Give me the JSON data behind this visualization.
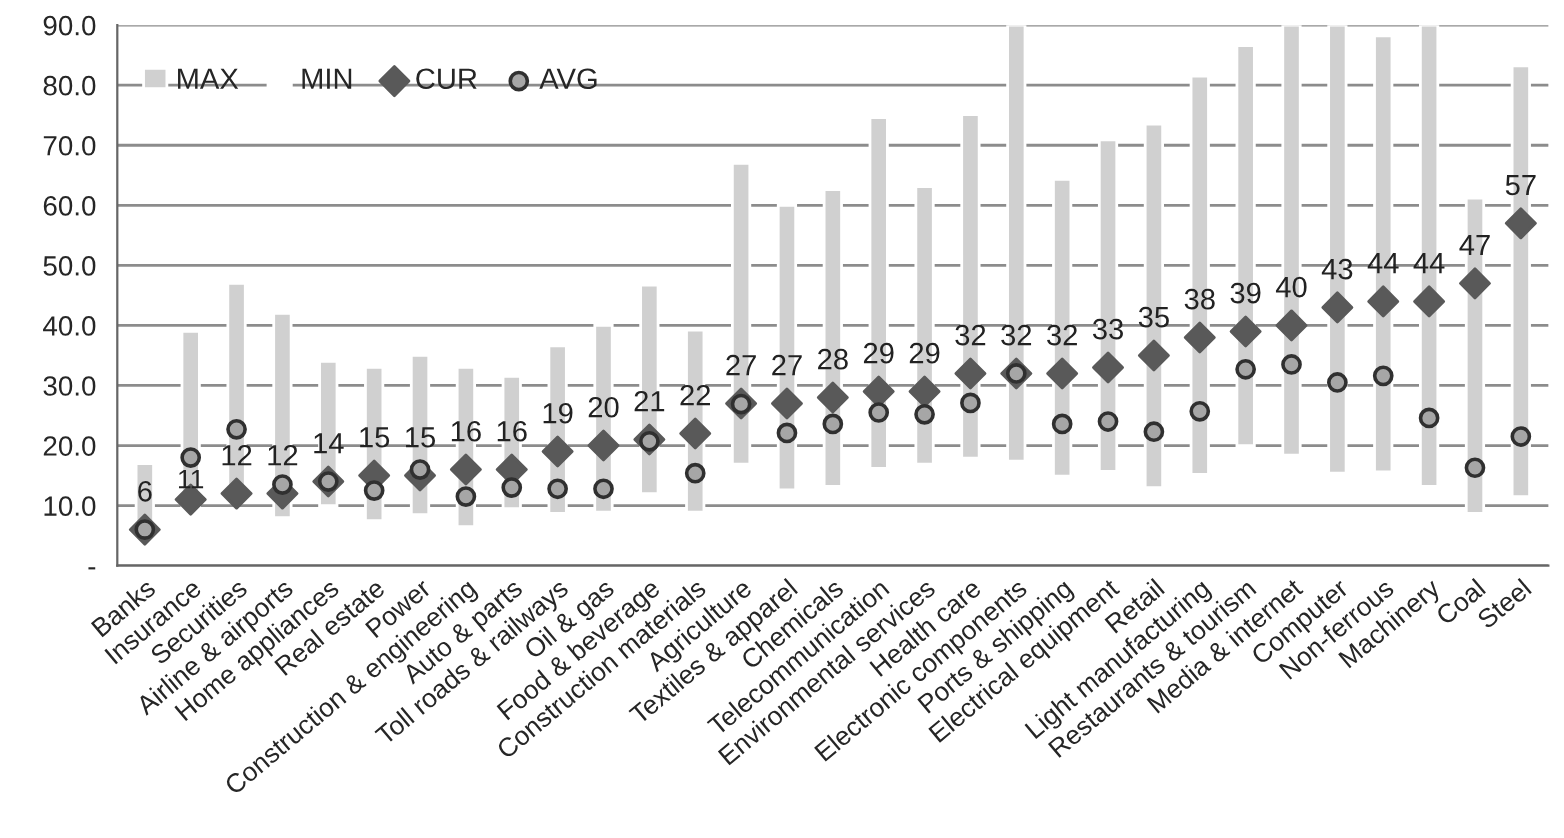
{
  "chart_data": {
    "type": "bar",
    "categories": [
      "Banks",
      "Insurance",
      "Securities",
      "Airline & airports",
      "Home appliances",
      "Real estate",
      "Power",
      "Construction & engineering",
      "Auto & parts",
      "Toll roads & railways",
      "Oil & gas",
      "Food & beverage",
      "Construction materials",
      "Agriculture",
      "Textiles & apparel",
      "Chemicals",
      "Telecommunication",
      "Environmental services",
      "Health care",
      "Electronic components",
      "Ports & shipping",
      "Electrical equipment",
      "Retail",
      "Light manufacturing",
      "Restaurants & tourism",
      "Media & internet",
      "Computer",
      "Non-ferrous",
      "Machinery",
      "Coal",
      "Steel"
    ],
    "series": [
      {
        "name": "MIN",
        "color": "#ffffff",
        "values": [
          null,
          null,
          null,
          null,
          null,
          null,
          null,
          null,
          null,
          null,
          null,
          null,
          null,
          null,
          null,
          null,
          null,
          null,
          null,
          null,
          null,
          null,
          null,
          null,
          null,
          null,
          null,
          null,
          null,
          null,
          null
        ]
      },
      {
        "name": "MAX",
        "color": "#d0d0d0",
        "base": [
          5,
          10,
          11,
          8,
          10,
          7.5,
          8.5,
          6.5,
          9.5,
          8.7,
          8.9,
          12,
          8.9,
          16.9,
          12.6,
          13.2,
          16.2,
          16.9,
          17.9,
          17.4,
          14.9,
          15.7,
          13,
          15.2,
          20,
          18.4,
          15.4,
          15.6,
          13.2,
          8.7,
          11.5
        ],
        "values": [
          12,
          29,
          36,
          34,
          24,
          25.5,
          26.5,
          26.5,
          22,
          27.9,
          31.1,
          34.7,
          30.3,
          50.1,
          47.4,
          49.4,
          58.4,
          46.2,
          57.2,
          72.6,
          49.4,
          55.2,
          60.5,
          66.3,
          66.6,
          71.6,
          74.6,
          72.6,
          76.8,
          52.5,
          71.7
        ]
      },
      {
        "name": "CUR",
        "type": "scatter",
        "marker": "diamond",
        "color": "#595959",
        "values": [
          6,
          11,
          12,
          12,
          14,
          15,
          15,
          16,
          16,
          19,
          20,
          21,
          22,
          27,
          27,
          28,
          29,
          29,
          32,
          32,
          32,
          33,
          35,
          38,
          39,
          40,
          43,
          44,
          44,
          47,
          57
        ],
        "value_labels": [
          "6",
          "11",
          "12",
          "12",
          "14",
          "15",
          "15",
          "16",
          "16",
          "19",
          "20",
          "21",
          "22",
          "27",
          "27",
          "28",
          "29",
          "29",
          "32",
          "32",
          "32",
          "33",
          "35",
          "38",
          "39",
          "40",
          "43",
          "44",
          "44",
          "47",
          "57"
        ]
      },
      {
        "name": "AVG",
        "type": "scatter",
        "marker": "circle",
        "color": "#a6a6a6",
        "values": [
          6,
          18,
          22.7,
          13.5,
          14,
          12.5,
          16,
          11.5,
          13,
          12.8,
          12.8,
          20.7,
          15.4,
          26.9,
          22.1,
          23.6,
          25.5,
          25.2,
          27.1,
          32,
          23.6,
          24,
          22.3,
          25.7,
          32.7,
          33.5,
          30.5,
          31.6,
          24.6,
          16.3,
          21.5
        ]
      }
    ],
    "ylim": [
      0,
      90
    ],
    "yticks": [
      {
        "value": 0,
        "label": "-"
      },
      {
        "value": 10,
        "label": "10.0"
      },
      {
        "value": 20,
        "label": "20.0"
      },
      {
        "value": 30,
        "label": "30.0"
      },
      {
        "value": 40,
        "label": "40.0"
      },
      {
        "value": 50,
        "label": "50.0"
      },
      {
        "value": 60,
        "label": "60.0"
      },
      {
        "value": 70,
        "label": "70.0"
      },
      {
        "value": 80,
        "label": "80.0"
      },
      {
        "value": 90,
        "label": "90.0"
      }
    ],
    "grid": "y",
    "legend": "top left"
  }
}
